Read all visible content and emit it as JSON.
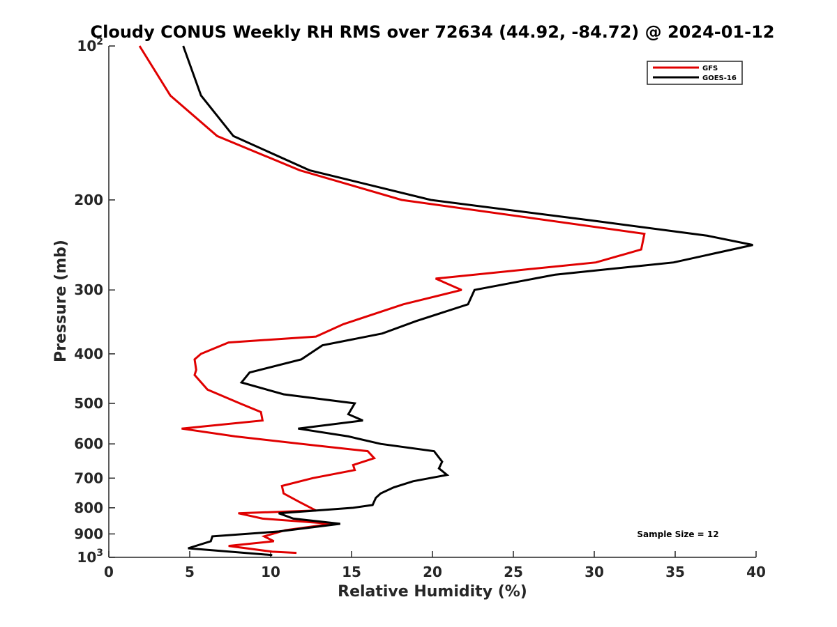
{
  "chart_data": {
    "type": "line",
    "title": "Cloudy CONUS Weekly RH RMS over 72634 (44.92, -84.72) @ 2024-01-12",
    "xlabel": "Relative Humidity (%)",
    "ylabel": "Pressure (mb)",
    "xlim": [
      0,
      40
    ],
    "ylim": [
      1000,
      100
    ],
    "y_scale": "log",
    "y_reversed": true,
    "grid": false,
    "legend_position": "top-right",
    "x_ticks": [
      0,
      5,
      10,
      15,
      20,
      25,
      30,
      35,
      40
    ],
    "y_ticks": [
      {
        "value": 100,
        "label": "10",
        "sup": "2"
      },
      {
        "value": 200,
        "label": "200",
        "sup": ""
      },
      {
        "value": 300,
        "label": "300",
        "sup": ""
      },
      {
        "value": 400,
        "label": "400",
        "sup": ""
      },
      {
        "value": 500,
        "label": "500",
        "sup": ""
      },
      {
        "value": 600,
        "label": "600",
        "sup": ""
      },
      {
        "value": 700,
        "label": "700",
        "sup": ""
      },
      {
        "value": 800,
        "label": "800",
        "sup": ""
      },
      {
        "value": 900,
        "label": "900",
        "sup": ""
      },
      {
        "value": 1000,
        "label": "10",
        "sup": "3"
      }
    ],
    "series": [
      {
        "name": "GFS",
        "color": "#e00000",
        "points": [
          [
            1.9,
            100
          ],
          [
            3.8,
            125
          ],
          [
            6.7,
            150
          ],
          [
            11.8,
            175
          ],
          [
            18.1,
            200
          ],
          [
            33.1,
            233
          ],
          [
            32.9,
            250
          ],
          [
            30.1,
            265
          ],
          [
            20.2,
            285
          ],
          [
            21.8,
            300
          ],
          [
            18.2,
            320
          ],
          [
            14.5,
            350
          ],
          [
            12.8,
            370
          ],
          [
            7.4,
            380
          ],
          [
            5.7,
            400
          ],
          [
            5.3,
            410
          ],
          [
            5.4,
            430
          ],
          [
            5.3,
            440
          ],
          [
            6.1,
            470
          ],
          [
            8.1,
            500
          ],
          [
            9.4,
            520
          ],
          [
            9.5,
            540
          ],
          [
            4.5,
            560
          ],
          [
            7.8,
            580
          ],
          [
            12.9,
            605
          ],
          [
            16.0,
            620
          ],
          [
            16.4,
            640
          ],
          [
            15.1,
            660
          ],
          [
            15.2,
            675
          ],
          [
            12.6,
            700
          ],
          [
            10.7,
            725
          ],
          [
            10.8,
            750
          ],
          [
            11.8,
            780
          ],
          [
            12.8,
            810
          ],
          [
            8.0,
            820
          ],
          [
            9.5,
            840
          ],
          [
            13.8,
            860
          ],
          [
            10.9,
            885
          ],
          [
            9.6,
            910
          ],
          [
            10.2,
            930
          ],
          [
            7.4,
            950
          ],
          [
            10.1,
            975
          ],
          [
            11.6,
            980
          ]
        ]
      },
      {
        "name": "GOES-16",
        "color": "#000000",
        "points": [
          [
            4.6,
            100
          ],
          [
            5.7,
            125
          ],
          [
            7.7,
            150
          ],
          [
            12.4,
            175
          ],
          [
            19.9,
            200
          ],
          [
            30.1,
            220
          ],
          [
            37.0,
            235
          ],
          [
            39.8,
            245
          ],
          [
            34.9,
            265
          ],
          [
            27.6,
            280
          ],
          [
            22.6,
            300
          ],
          [
            22.2,
            320
          ],
          [
            19.0,
            345
          ],
          [
            16.9,
            365
          ],
          [
            13.2,
            385
          ],
          [
            11.9,
            410
          ],
          [
            8.7,
            435
          ],
          [
            8.2,
            455
          ],
          [
            10.8,
            480
          ],
          [
            15.2,
            500
          ],
          [
            14.8,
            525
          ],
          [
            15.7,
            540
          ],
          [
            11.7,
            560
          ],
          [
            14.8,
            580
          ],
          [
            16.8,
            600
          ],
          [
            20.1,
            620
          ],
          [
            20.6,
            650
          ],
          [
            20.4,
            670
          ],
          [
            20.9,
            690
          ],
          [
            18.8,
            710
          ],
          [
            17.6,
            730
          ],
          [
            16.8,
            750
          ],
          [
            16.5,
            765
          ],
          [
            16.3,
            790
          ],
          [
            15.1,
            800
          ],
          [
            10.5,
            820
          ],
          [
            11.4,
            840
          ],
          [
            14.3,
            860
          ],
          [
            10.5,
            890
          ],
          [
            6.4,
            910
          ],
          [
            6.3,
            930
          ],
          [
            4.9,
            960
          ],
          [
            10.1,
            990
          ]
        ]
      }
    ],
    "annotations": [
      {
        "text": "Sample Size = 12",
        "position": "bottom-right"
      }
    ]
  }
}
